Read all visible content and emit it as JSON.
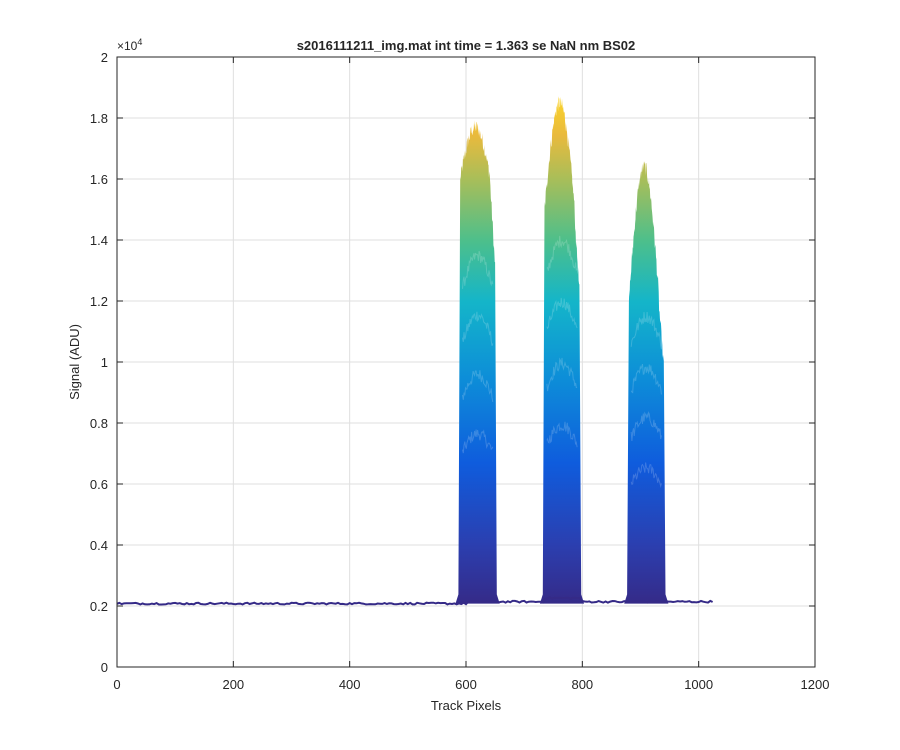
{
  "chart_data": {
    "type": "line",
    "title": "s2016111211_img.mat int time = 1.363 se  NaN nm BS02",
    "xlabel": "Track Pixels",
    "ylabel": "Signal (ADU)",
    "xlim": [
      0,
      1200
    ],
    "ylim": [
      0,
      20000
    ],
    "x_ticks": [
      0,
      200,
      400,
      600,
      800,
      1000,
      1200
    ],
    "x_tick_labels": [
      "0",
      "200",
      "400",
      "600",
      "800",
      "1000",
      "1200"
    ],
    "y_ticks": [
      0,
      2000,
      4000,
      6000,
      8000,
      10000,
      12000,
      14000,
      16000,
      18000,
      20000
    ],
    "y_tick_labels": [
      "0",
      "0.2",
      "0.4",
      "0.6",
      "0.8",
      "1",
      "1.2",
      "1.4",
      "1.6",
      "1.8",
      "2"
    ],
    "y_exponent_label": "×10",
    "y_exponent_power": "4",
    "grid": true,
    "colormap": "parula",
    "colors": {
      "low": "#352a87",
      "mid_blue": "#0f5cdd",
      "cyan": "#14b5c9",
      "green": "#4cbf8c",
      "high": "#f9d22b",
      "axis": "#262626",
      "grid": "#dfdfdf"
    },
    "baseline": {
      "x_range": [
        0,
        1024
      ],
      "level": 2080
    },
    "peaks": [
      {
        "x_start": 590,
        "x_end": 650,
        "plateau_start": 16000,
        "top_max": 17700,
        "inner_level": 13500
      },
      {
        "x_start": 735,
        "x_end": 795,
        "plateau_start": 15000,
        "top_max": 18500,
        "inner_level": 14000
      },
      {
        "x_start": 880,
        "x_end": 940,
        "plateau_start": 12000,
        "top_max": 16400,
        "inner_level": 11500
      }
    ]
  }
}
